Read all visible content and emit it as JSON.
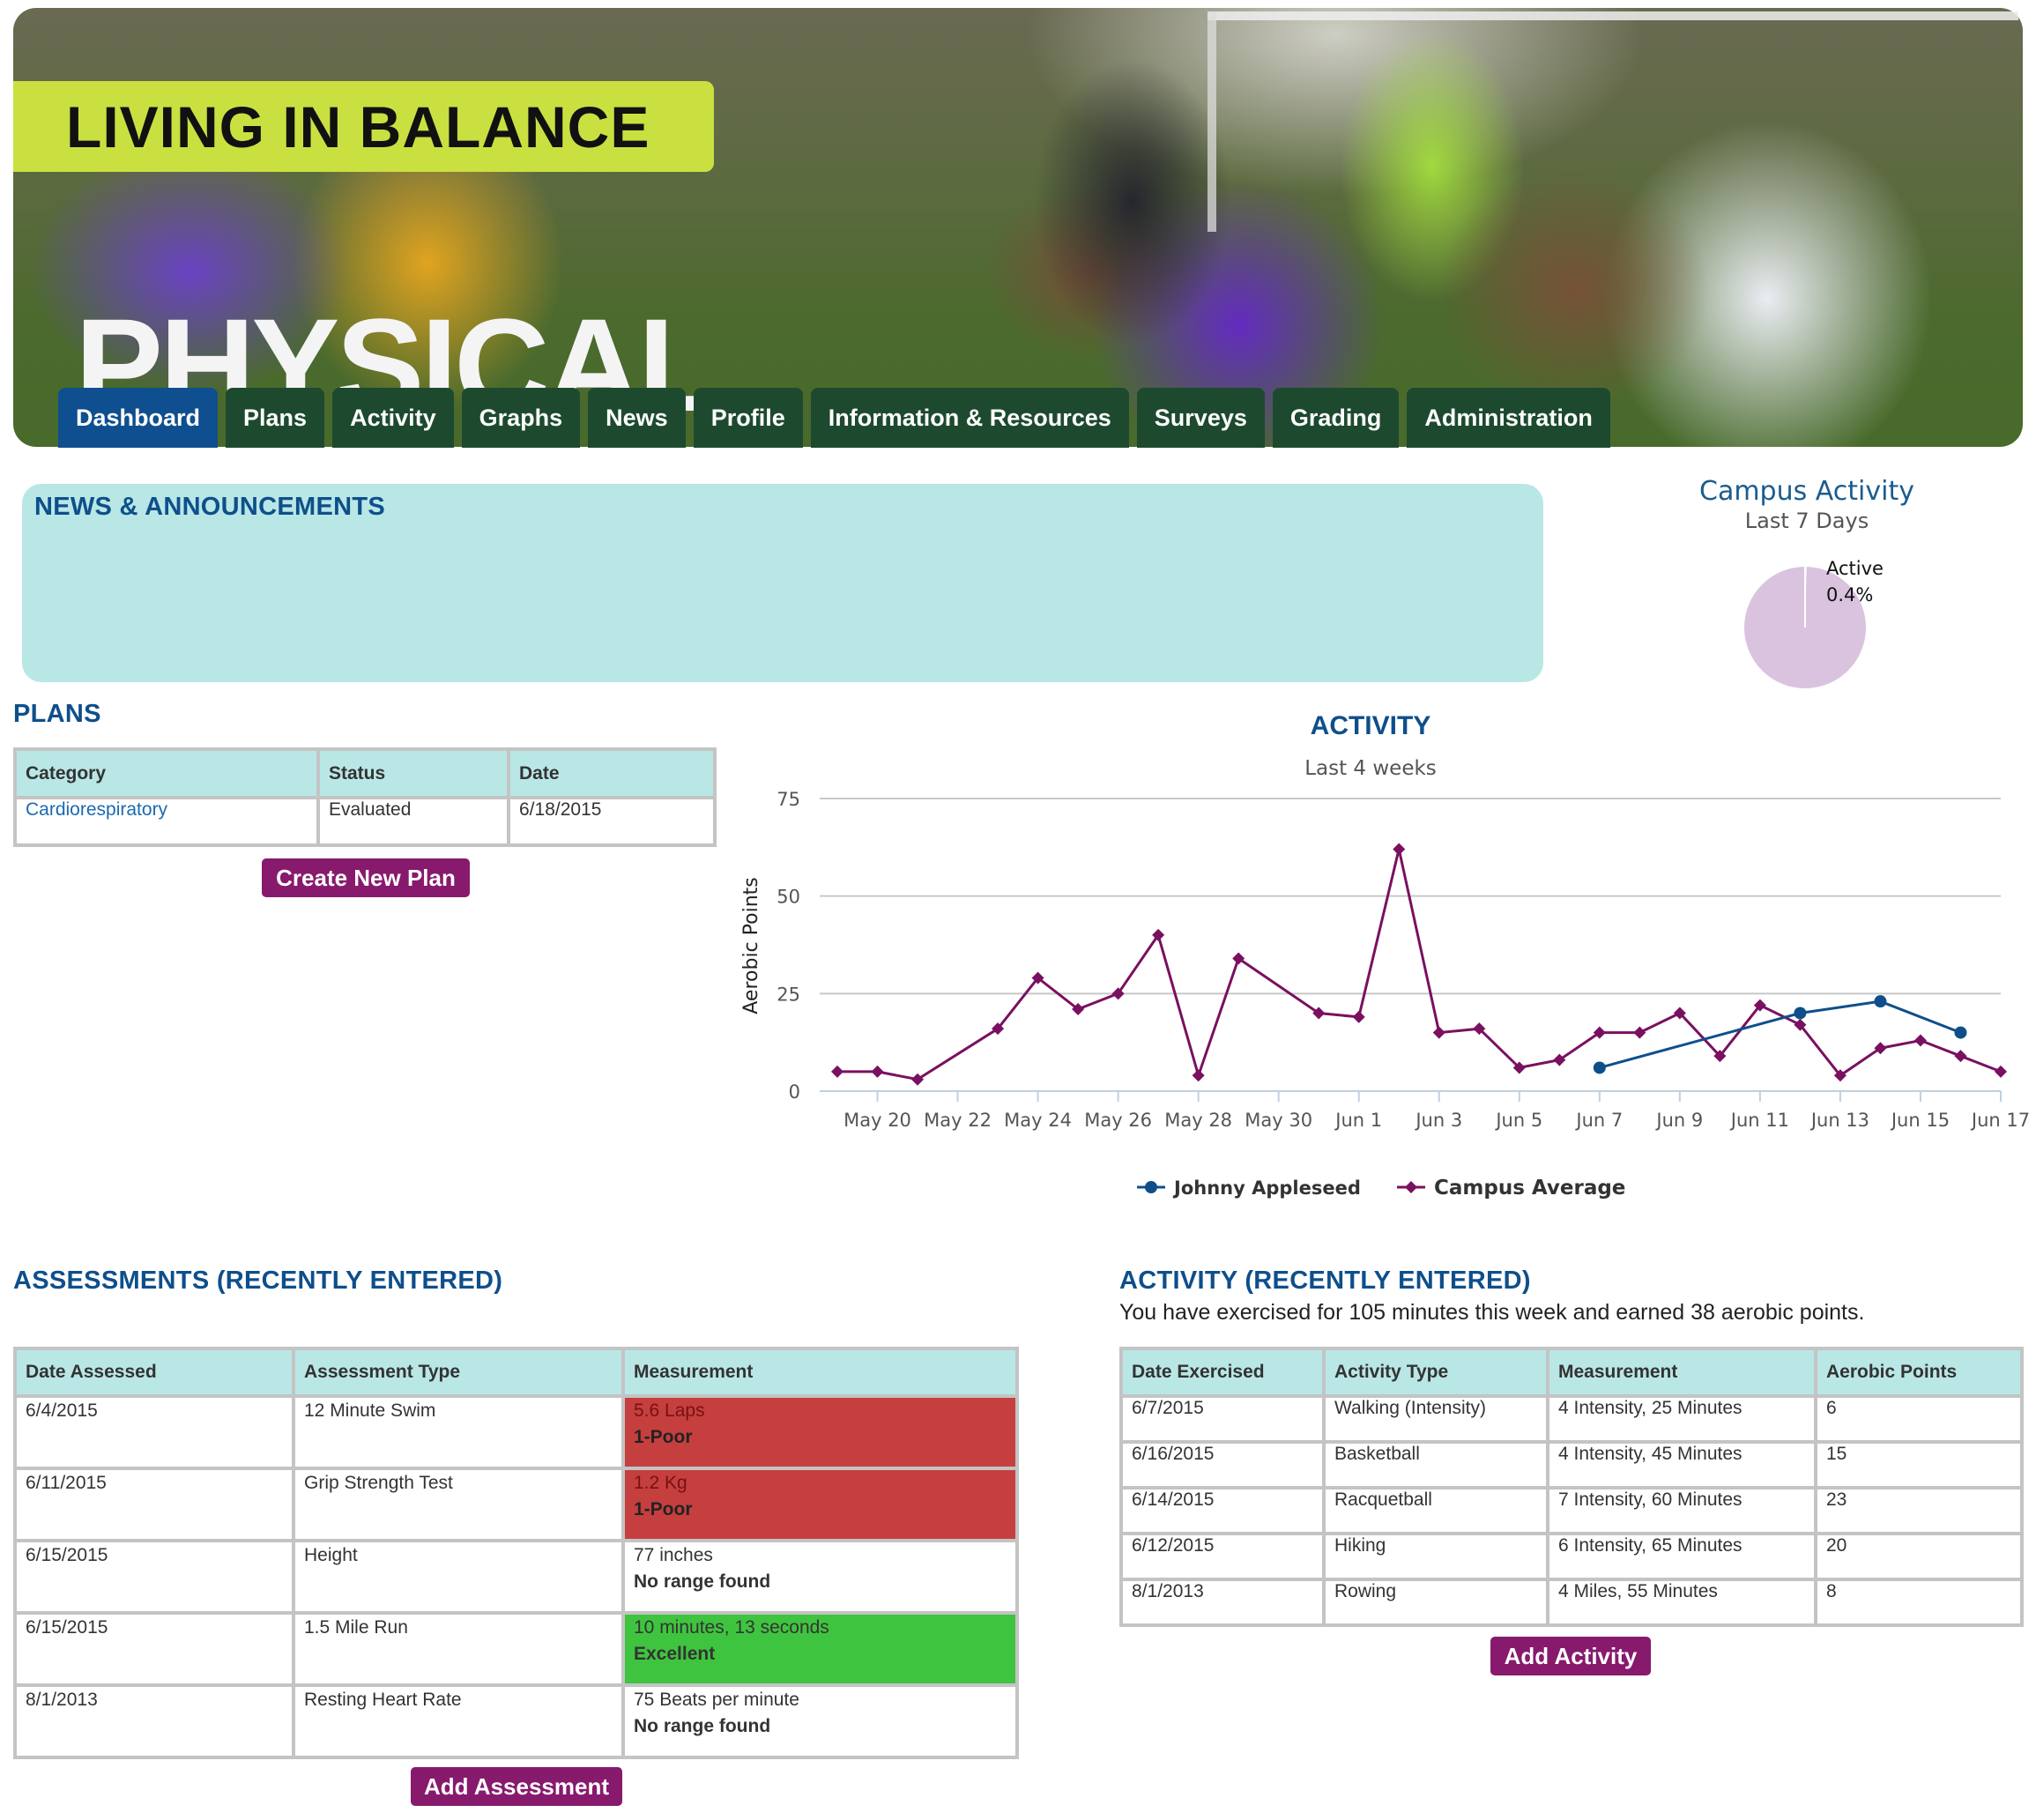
{
  "header": {
    "banner_title": "LIVING IN BALANCE",
    "section_title": "PHYSICAL",
    "nav": [
      {
        "label": "Dashboard",
        "active": true
      },
      {
        "label": "Plans"
      },
      {
        "label": "Activity"
      },
      {
        "label": "Graphs"
      },
      {
        "label": "News"
      },
      {
        "label": "Profile"
      },
      {
        "label": "Information & Resources"
      },
      {
        "label": "Surveys"
      },
      {
        "label": "Grading"
      },
      {
        "label": "Administration"
      }
    ]
  },
  "news": {
    "title": "NEWS & ANNOUNCEMENTS"
  },
  "campus_activity": {
    "title": "Campus Activity",
    "subtitle": "Last 7 Days",
    "slice_label": "Active",
    "slice_value": "0.4%",
    "active_fraction": 0.004,
    "color": "#dac3df"
  },
  "plans": {
    "title": "PLANS",
    "headers": [
      "Category",
      "Status",
      "Date"
    ],
    "rows": [
      [
        "Cardiorespiratory",
        "Evaluated",
        "6/18/2015"
      ]
    ],
    "button": "Create New Plan"
  },
  "chart_data": {
    "type": "line",
    "title": "ACTIVITY",
    "subtitle": "Last 4 weeks",
    "ylabel": "Aerobic Points",
    "ylim": [
      0,
      75
    ],
    "yticks": [
      0,
      25,
      50,
      75
    ],
    "xlim": [
      19,
      48
    ],
    "xticks": [
      {
        "day": 20,
        "label": "May 20"
      },
      {
        "day": 22,
        "label": "May 22"
      },
      {
        "day": 24,
        "label": "May 24"
      },
      {
        "day": 26,
        "label": "May 26"
      },
      {
        "day": 28,
        "label": "May 28"
      },
      {
        "day": 30,
        "label": "May 30"
      },
      {
        "day": 32,
        "label": "Jun 1"
      },
      {
        "day": 34,
        "label": "Jun 3"
      },
      {
        "day": 36,
        "label": "Jun 5"
      },
      {
        "day": 38,
        "label": "Jun 7"
      },
      {
        "day": 40,
        "label": "Jun 9"
      },
      {
        "day": 42,
        "label": "Jun 11"
      },
      {
        "day": 44,
        "label": "Jun 13"
      },
      {
        "day": 46,
        "label": "Jun 15"
      },
      {
        "day": 48,
        "label": "Jun 17"
      }
    ],
    "series": [
      {
        "name": "Johnny Appleseed",
        "color": "#0e4f8b",
        "marker": "circle",
        "points": [
          [
            38,
            6
          ],
          [
            43,
            20
          ],
          [
            45,
            23
          ],
          [
            47,
            15
          ]
        ]
      },
      {
        "name": "Campus Average",
        "color": "#7a1060",
        "marker": "diamond",
        "points": [
          [
            19,
            5
          ],
          [
            20,
            5
          ],
          [
            21,
            3
          ],
          [
            23,
            16
          ],
          [
            24,
            29
          ],
          [
            25,
            21
          ],
          [
            26,
            25
          ],
          [
            27,
            40
          ],
          [
            28,
            4
          ],
          [
            29,
            34
          ],
          [
            31,
            20
          ],
          [
            32,
            19
          ],
          [
            33,
            62
          ],
          [
            34,
            15
          ],
          [
            35,
            16
          ],
          [
            36,
            6
          ],
          [
            37,
            8
          ],
          [
            38,
            15
          ],
          [
            39,
            15
          ],
          [
            40,
            20
          ],
          [
            41,
            9
          ],
          [
            42,
            22
          ],
          [
            43,
            17
          ],
          [
            44,
            4
          ],
          [
            45,
            11
          ],
          [
            46,
            13
          ],
          [
            47,
            9
          ],
          [
            48,
            5
          ]
        ]
      }
    ]
  },
  "assessments": {
    "title": "ASSESSMENTS (RECENTLY ENTERED)",
    "headers": [
      "Date Assessed",
      "Assessment Type",
      "Measurement"
    ],
    "rows": [
      {
        "date": "6/4/2015",
        "type": "12 Minute Swim",
        "value": "5.6 Laps",
        "rating": "1-Poor",
        "status": "poor"
      },
      {
        "date": "6/11/2015",
        "type": "Grip Strength Test",
        "value": "1.2 Kg",
        "rating": "1-Poor",
        "status": "poor"
      },
      {
        "date": "6/15/2015",
        "type": "Height",
        "value": "77 inches",
        "rating": "No range found",
        "status": "none"
      },
      {
        "date": "6/15/2015",
        "type": "1.5 Mile Run",
        "value": "10 minutes, 13 seconds",
        "rating": "Excellent",
        "status": "good"
      },
      {
        "date": "8/1/2013",
        "type": "Resting Heart Rate",
        "value": "75 Beats per minute",
        "rating": "No range found",
        "status": "none"
      }
    ],
    "button": "Add Assessment"
  },
  "activity_recent": {
    "title": "ACTIVITY (RECENTLY ENTERED)",
    "summary": "You have exercised for 105 minutes this week and earned 38 aerobic points.",
    "headers": [
      "Date Exercised",
      "Activity Type",
      "Measurement",
      "Aerobic Points"
    ],
    "rows": [
      [
        "6/7/2015",
        "Walking (Intensity)",
        "4 Intensity, 25 Minutes",
        "6"
      ],
      [
        "6/16/2015",
        "Basketball",
        "4 Intensity, 45 Minutes",
        "15"
      ],
      [
        "6/14/2015",
        "Racquetball",
        "7 Intensity, 60 Minutes",
        "23"
      ],
      [
        "6/12/2015",
        "Hiking",
        "6 Intensity, 65 Minutes",
        "20"
      ],
      [
        "8/1/2013",
        "Rowing",
        "4 Miles, 55 Minutes",
        "8"
      ]
    ],
    "button": "Add Activity"
  }
}
